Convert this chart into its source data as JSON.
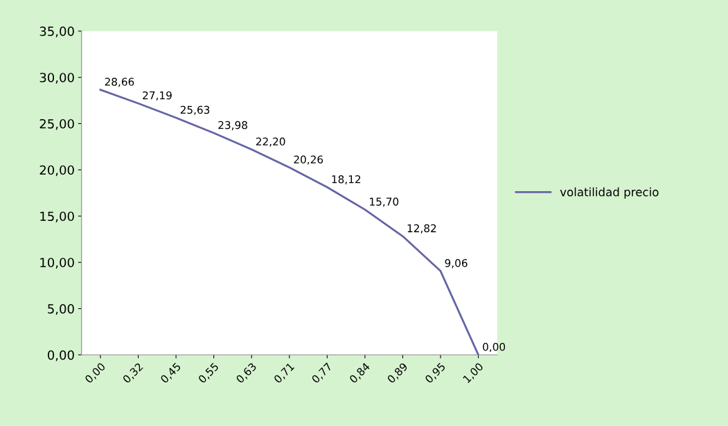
{
  "chart_data": {
    "type": "line",
    "categories": [
      "0,00",
      "0,32",
      "0,45",
      "0,55",
      "0,63",
      "0,71",
      "0,77",
      "0,84",
      "0,89",
      "0,95",
      "1,00"
    ],
    "series": [
      {
        "name": "volatilidad precio",
        "color": "#6464a4",
        "values": [
          28.66,
          27.19,
          25.63,
          23.98,
          22.2,
          20.26,
          18.12,
          15.7,
          12.82,
          9.06,
          0.0
        ],
        "value_labels": [
          "28,66",
          "27,19",
          "25,63",
          "23,98",
          "22,20",
          "20,26",
          "18,12",
          "15,70",
          "12,82",
          "9,06",
          "0,00"
        ]
      }
    ],
    "ylim": [
      0,
      35
    ],
    "yticks": [
      {
        "value": 0,
        "label": "0,00"
      },
      {
        "value": 5,
        "label": "5,00"
      },
      {
        "value": 10,
        "label": "10,00"
      },
      {
        "value": 15,
        "label": "15,00"
      },
      {
        "value": 20,
        "label": "20,00"
      },
      {
        "value": 25,
        "label": "25,00"
      },
      {
        "value": 30,
        "label": "30,00"
      },
      {
        "value": 35,
        "label": "35,00"
      }
    ],
    "legend": "right",
    "marker": "none",
    "line_style": "solid"
  }
}
